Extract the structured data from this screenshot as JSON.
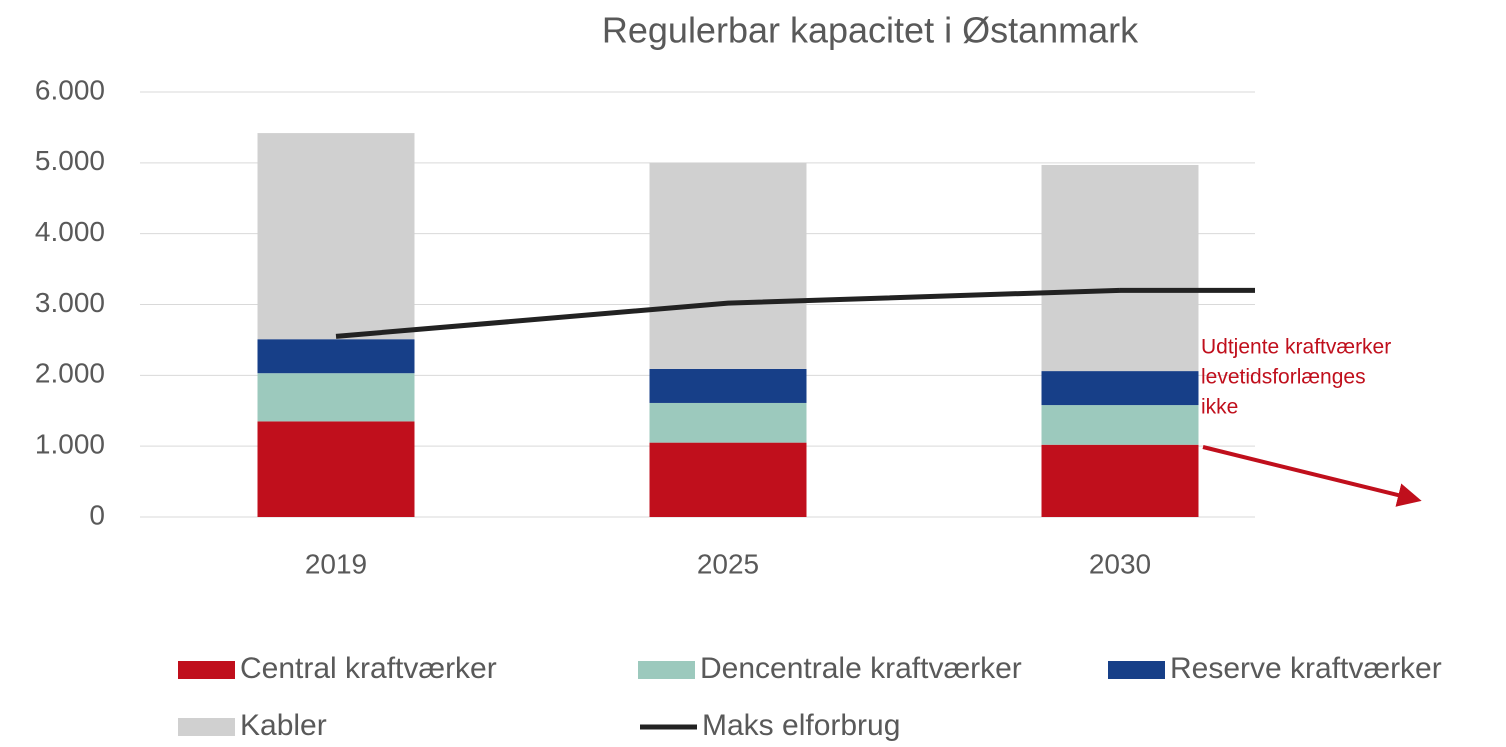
{
  "chart_data": {
    "type": "bar",
    "stacked": true,
    "title": "Regulerbar kapacitet i Østanmark",
    "categories": [
      "2019",
      "2025",
      "2030"
    ],
    "series": [
      {
        "name": "Central kraftværker",
        "color": "#c00f1c",
        "values": [
          1350,
          1050,
          1020
        ]
      },
      {
        "name": "Dencentrale kraftværker",
        "color": "#9cc9bd",
        "values": [
          680,
          560,
          560
        ]
      },
      {
        "name": "Reserve kraftværker",
        "color": "#173f88",
        "values": [
          480,
          480,
          480
        ]
      },
      {
        "name": "Kabler",
        "color": "#d0d0d0",
        "values": [
          2910,
          2910,
          2910
        ]
      },
      {
        "name": "Maks elforbrug",
        "color": "#222222",
        "type": "line",
        "values": [
          2550,
          3020,
          3200
        ]
      }
    ],
    "ylim": [
      0,
      6000
    ],
    "yticks": [
      0,
      {
        "value": 1000,
        "label": "1.000"
      },
      {
        "value": 2000,
        "label": "2.000"
      },
      {
        "value": 3000,
        "label": "3.000"
      },
      {
        "value": 4000,
        "label": "4.000"
      },
      {
        "value": 5000,
        "label": "5.000"
      },
      {
        "value": 6000,
        "label": "6.000"
      }
    ],
    "grid": true,
    "annotation": {
      "lines": [
        "Udtjente kraftværker",
        "levetidsforlænges",
        "ikke"
      ],
      "color": "#c00f1c"
    }
  }
}
